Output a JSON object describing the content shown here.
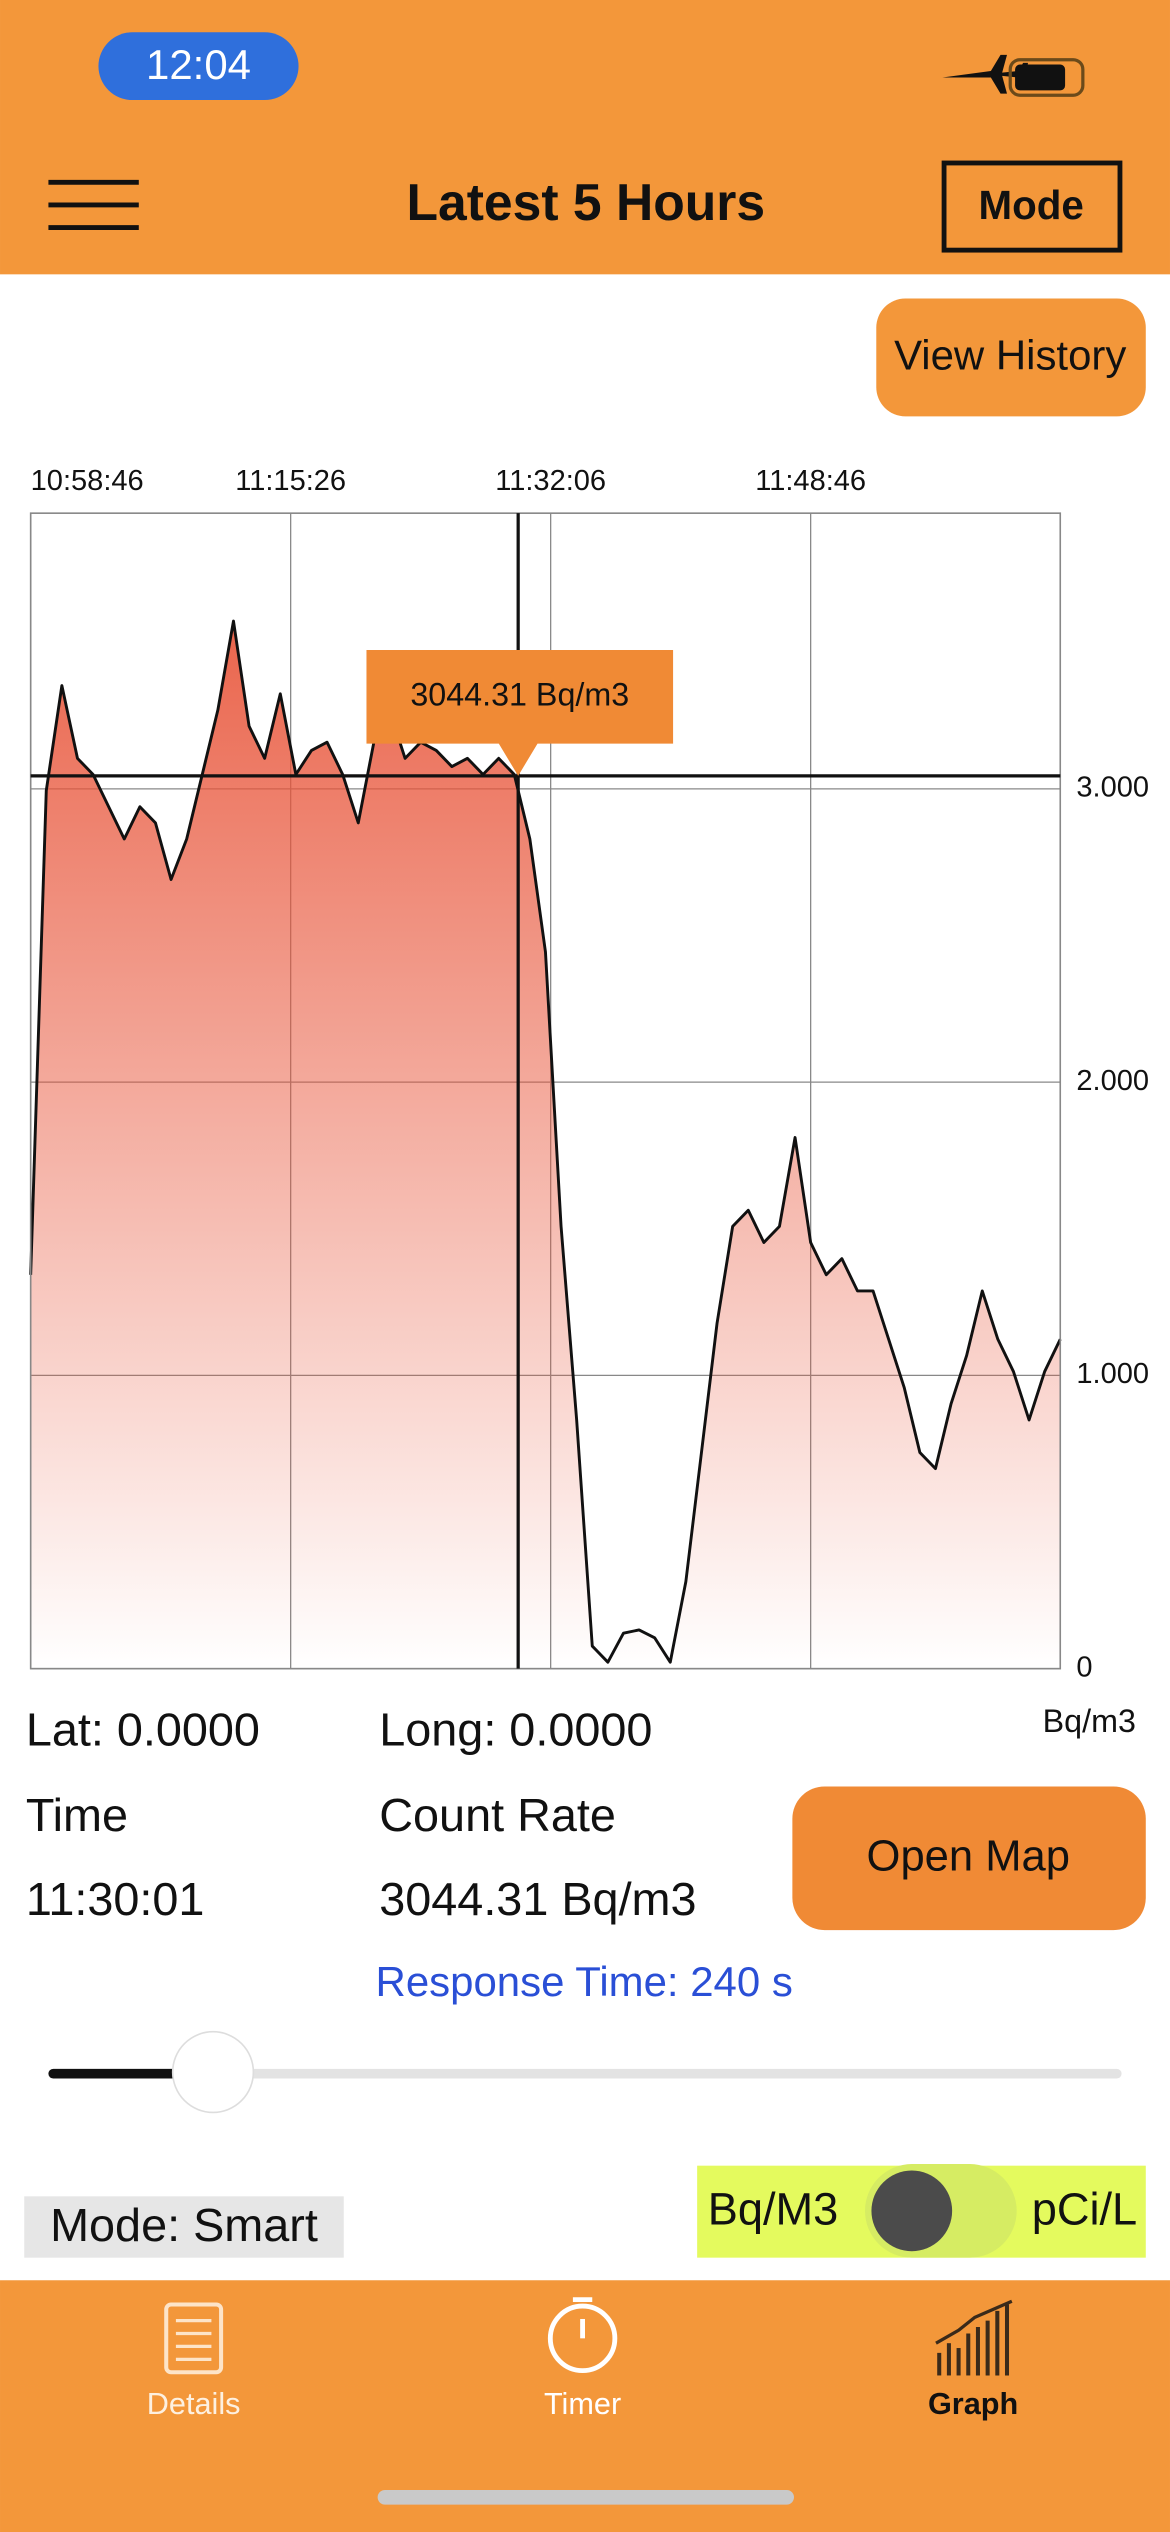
{
  "status_bar": {
    "time": "12:04"
  },
  "nav": {
    "title": "Latest 5 Hours",
    "mode_button": "Mode"
  },
  "view_history_button": "View History",
  "chart_data": {
    "type": "area",
    "y_unit": "Bq/m3",
    "xlim": [
      "10:58:46",
      "12:04:46"
    ],
    "xticks": [
      "10:58:46",
      "11:15:26",
      "11:32:06",
      "11:48:46"
    ],
    "ylim": [
      0,
      3940
    ],
    "yticks": [
      0,
      {
        "value": 1000,
        "label": "1.000"
      },
      {
        "value": 2000,
        "label": "2.000"
      },
      {
        "value": 3000,
        "label": "3.000"
      }
    ],
    "grid": true,
    "color": "#e8553a",
    "x": [
      "10:58:46",
      "10:59:46",
      "11:00:46",
      "11:01:46",
      "11:02:46",
      "11:03:46",
      "11:04:46",
      "11:05:46",
      "11:06:46",
      "11:07:46",
      "11:08:46",
      "11:09:46",
      "11:10:46",
      "11:11:46",
      "11:12:46",
      "11:13:46",
      "11:14:46",
      "11:15:46",
      "11:16:46",
      "11:17:46",
      "11:18:46",
      "11:19:46",
      "11:20:46",
      "11:21:46",
      "11:22:46",
      "11:23:46",
      "11:24:46",
      "11:25:46",
      "11:26:46",
      "11:27:46",
      "11:28:46",
      "11:29:46",
      "11:30:46",
      "11:31:46",
      "11:32:46",
      "11:33:46",
      "11:34:46",
      "11:35:46",
      "11:36:46",
      "11:37:46",
      "11:38:46",
      "11:39:46",
      "11:40:46",
      "11:41:46",
      "11:42:46",
      "11:43:46",
      "11:44:46",
      "11:45:46",
      "11:46:46",
      "11:47:46",
      "11:48:46",
      "11:49:46",
      "11:50:46",
      "11:51:46",
      "11:52:46",
      "11:53:46",
      "11:54:46",
      "11:55:46",
      "11:56:46",
      "11:57:46",
      "11:58:46",
      "11:59:46",
      "12:00:46",
      "12:01:46",
      "12:02:46",
      "12:03:46",
      "12:04:46"
    ],
    "values": [
      1343,
      2994,
      3352,
      3104,
      3049,
      2939,
      2829,
      2939,
      2884,
      2691,
      2829,
      3049,
      3269,
      3572,
      3214,
      3104,
      3324,
      3049,
      3131,
      3159,
      3049,
      2884,
      3159,
      3269,
      3104,
      3159,
      3131,
      3076,
      3104,
      3049,
      3104,
      3049,
      2829,
      2444,
      1508,
      848,
      77,
      22,
      121,
      132,
      105,
      22,
      297,
      737,
      1178,
      1508,
      1563,
      1453,
      1508,
      1811,
      1453,
      1343,
      1398,
      1288,
      1288,
      1123,
      958,
      737,
      682,
      903,
      1068,
      1288,
      1123,
      1013,
      848,
      1013,
      1123
    ],
    "cursor": {
      "x": "11:30:01",
      "value": 3044.31,
      "label": "3044.31 Bq/m3"
    }
  },
  "info": {
    "lat": "Lat: 0.0000",
    "long": "Long: 0.0000",
    "time_label": "Time",
    "count_rate_label": "Count Rate",
    "open_map_button": "Open Map",
    "response_time": "Response Time: 240 s"
  },
  "footer": {
    "mode": "Mode: Smart",
    "unit_left": "Bq/M3",
    "unit_right": "pCi/L"
  },
  "tabs": [
    "Details",
    "Timer",
    "Graph"
  ]
}
